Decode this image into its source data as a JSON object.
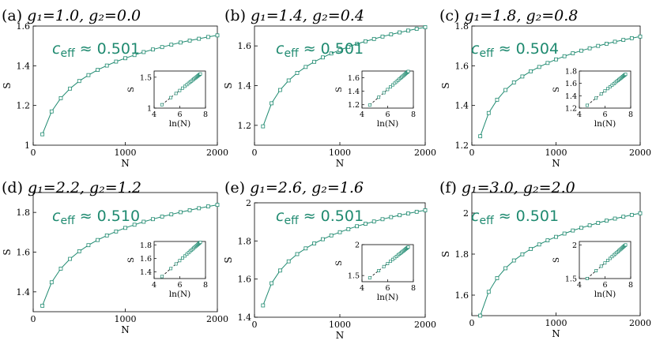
{
  "colors": {
    "series": "#1f8a70",
    "axis": "#000000"
  },
  "chart_data": [
    {
      "type": "line",
      "panel": "(a)",
      "title": "g₁=1.0, g₂=0.0",
      "annotation": "c_eff ≈ 0.501",
      "annotation_parts": {
        "symbol": "c",
        "subscript": "eff",
        "value": "≈ 0.501"
      },
      "xlabel": "N",
      "ylabel": "S",
      "xlim": [
        0,
        2000
      ],
      "ylim": [
        1.0,
        1.6
      ],
      "xticks": [
        0,
        1000,
        2000
      ],
      "xtick_labels": [
        "0",
        "1000",
        "2000"
      ],
      "yticks": [
        1.0,
        1.2,
        1.4,
        1.6
      ],
      "ytick_labels": [
        "1",
        "1.2",
        "1.4",
        "1.6"
      ],
      "x": [
        100,
        200,
        300,
        400,
        500,
        600,
        700,
        800,
        900,
        1000,
        1100,
        1200,
        1300,
        1400,
        1500,
        1600,
        1700,
        1800,
        1900,
        2000
      ],
      "y": [
        1.055,
        1.17,
        1.237,
        1.285,
        1.323,
        1.353,
        1.379,
        1.401,
        1.421,
        1.438,
        1.454,
        1.469,
        1.482,
        1.494,
        1.506,
        1.517,
        1.527,
        1.536,
        1.545,
        1.553
      ],
      "inset": {
        "xlabel": "ln(N)",
        "ylabel": "S",
        "xlim": [
          4,
          8
        ],
        "ylim": [
          1.0,
          1.6
        ],
        "xticks": [
          4,
          6,
          8
        ],
        "xtick_labels": [
          "4",
          "6",
          "8"
        ],
        "yticks": [
          1.0,
          1.5
        ],
        "ytick_labels": [
          "1",
          "1.5"
        ]
      }
    },
    {
      "type": "line",
      "panel": "(b)",
      "title": "g₁=1.4, g₂=0.4",
      "annotation": "c_eff ≈ 0.501",
      "annotation_parts": {
        "symbol": "c",
        "subscript": "eff",
        "value": "≈ 0.501"
      },
      "xlabel": "N",
      "ylabel": "S",
      "xlim": [
        0,
        2000
      ],
      "ylim": [
        1.1,
        1.7
      ],
      "xticks": [
        0,
        1000,
        2000
      ],
      "xtick_labels": [
        "0",
        "1000",
        "2000"
      ],
      "yticks": [
        1.2,
        1.4,
        1.6
      ],
      "ytick_labels": [
        "1.2",
        "1.4",
        "1.6"
      ],
      "x": [
        100,
        200,
        300,
        400,
        500,
        600,
        700,
        800,
        900,
        1000,
        1100,
        1200,
        1300,
        1400,
        1500,
        1600,
        1700,
        1800,
        1900,
        2000
      ],
      "y": [
        1.195,
        1.311,
        1.378,
        1.426,
        1.464,
        1.494,
        1.52,
        1.542,
        1.562,
        1.579,
        1.595,
        1.61,
        1.623,
        1.635,
        1.647,
        1.658,
        1.668,
        1.677,
        1.686,
        1.694
      ],
      "inset": {
        "xlabel": "ln(N)",
        "ylabel": "S",
        "xlim": [
          4,
          8
        ],
        "ylim": [
          1.15,
          1.7
        ],
        "xticks": [
          4,
          6,
          8
        ],
        "xtick_labels": [
          "4",
          "6",
          "8"
        ],
        "yticks": [
          1.2,
          1.4,
          1.6
        ],
        "ytick_labels": [
          "1.2",
          "1.4",
          "1.6"
        ]
      }
    },
    {
      "type": "line",
      "panel": "(c)",
      "title": "g₁=1.8, g₂=0.8",
      "annotation": "c_eff ≈ 0.504",
      "annotation_parts": {
        "symbol": "c",
        "subscript": "eff",
        "value": "≈ 0.504"
      },
      "xlabel": "N",
      "ylabel": "S",
      "xlim": [
        0,
        2000
      ],
      "ylim": [
        1.2,
        1.8
      ],
      "xticks": [
        0,
        1000,
        2000
      ],
      "xtick_labels": [
        "0",
        "1000",
        "2000"
      ],
      "yticks": [
        1.2,
        1.4,
        1.6,
        1.8
      ],
      "ytick_labels": [
        "1.2",
        "1.4",
        "1.6",
        "1.8"
      ],
      "x": [
        100,
        200,
        300,
        400,
        500,
        600,
        700,
        800,
        900,
        1000,
        1100,
        1200,
        1300,
        1400,
        1500,
        1600,
        1700,
        1800,
        1900,
        2000
      ],
      "y": [
        1.245,
        1.362,
        1.429,
        1.478,
        1.516,
        1.546,
        1.572,
        1.594,
        1.614,
        1.632,
        1.648,
        1.663,
        1.676,
        1.688,
        1.7,
        1.711,
        1.721,
        1.73,
        1.739,
        1.747
      ],
      "inset": {
        "xlabel": "ln(N)",
        "ylabel": "S",
        "xlim": [
          4,
          8
        ],
        "ylim": [
          1.2,
          1.8
        ],
        "xticks": [
          4,
          6,
          8
        ],
        "xtick_labels": [
          "4",
          "6",
          "8"
        ],
        "yticks": [
          1.2,
          1.4,
          1.6,
          1.8
        ],
        "ytick_labels": [
          "1.2",
          "1.4",
          "1.6",
          "1.8"
        ]
      }
    },
    {
      "type": "line",
      "panel": "(d)",
      "title": "g₁=2.2, g₂=1.2",
      "annotation": "c_eff ≈ 0.510",
      "annotation_parts": {
        "symbol": "c",
        "subscript": "eff",
        "value": "≈ 0.510"
      },
      "xlabel": "N",
      "ylabel": "S",
      "xlim": [
        0,
        2000
      ],
      "ylim": [
        1.3,
        1.9
      ],
      "xticks": [
        0,
        1000,
        2000
      ],
      "xtick_labels": [
        "0",
        "1000",
        "2000"
      ],
      "yticks": [
        1.4,
        1.6,
        1.8
      ],
      "ytick_labels": [
        "1.4",
        "1.6",
        "1.8"
      ],
      "x": [
        100,
        200,
        300,
        400,
        500,
        600,
        700,
        800,
        900,
        1000,
        1100,
        1200,
        1300,
        1400,
        1500,
        1600,
        1700,
        1800,
        1900,
        2000
      ],
      "y": [
        1.33,
        1.448,
        1.517,
        1.566,
        1.604,
        1.635,
        1.661,
        1.684,
        1.704,
        1.722,
        1.738,
        1.753,
        1.766,
        1.779,
        1.79,
        1.801,
        1.811,
        1.821,
        1.83,
        1.838
      ],
      "inset": {
        "xlabel": "ln(N)",
        "ylabel": "S",
        "xlim": [
          4,
          8
        ],
        "ylim": [
          1.3,
          1.85
        ],
        "xticks": [
          4,
          6,
          8
        ],
        "xtick_labels": [
          "4",
          "6",
          "8"
        ],
        "yticks": [
          1.4,
          1.6,
          1.8
        ],
        "ytick_labels": [
          "1.4",
          "1.6",
          "1.8"
        ]
      }
    },
    {
      "type": "line",
      "panel": "(e)",
      "title": "g₁=2.6, g₂=1.6",
      "annotation": "c_eff ≈ 0.501",
      "annotation_parts": {
        "symbol": "c",
        "subscript": "eff",
        "value": "≈ 0.501"
      },
      "xlabel": "N",
      "ylabel": "S",
      "xlim": [
        0,
        2000
      ],
      "ylim": [
        1.4,
        2.0
      ],
      "xticks": [
        0,
        1000,
        2000
      ],
      "xtick_labels": [
        "0",
        "1000",
        "2000"
      ],
      "yticks": [
        1.4,
        1.6,
        1.8,
        2.0
      ],
      "ytick_labels": [
        "1.4",
        "1.6",
        "1.8",
        "2"
      ],
      "x": [
        100,
        200,
        300,
        400,
        500,
        600,
        700,
        800,
        900,
        1000,
        1100,
        1200,
        1300,
        1400,
        1500,
        1600,
        1700,
        1800,
        1900,
        2000
      ],
      "y": [
        1.462,
        1.578,
        1.645,
        1.693,
        1.731,
        1.761,
        1.787,
        1.809,
        1.829,
        1.846,
        1.862,
        1.877,
        1.89,
        1.902,
        1.914,
        1.925,
        1.935,
        1.944,
        1.953,
        1.961
      ],
      "inset": {
        "xlabel": "ln(N)",
        "ylabel": "S",
        "xlim": [
          4,
          8
        ],
        "ylim": [
          1.4,
          2.0
        ],
        "xticks": [
          4,
          6,
          8
        ],
        "xtick_labels": [
          "4",
          "6",
          "8"
        ],
        "yticks": [
          1.5,
          2.0
        ],
        "ytick_labels": [
          "1.5",
          "2"
        ]
      }
    },
    {
      "type": "line",
      "panel": "(f)",
      "title": "g₁=3.0, g₂=2.0",
      "annotation": "c_eff ≈ 0.501",
      "annotation_parts": {
        "symbol": "c",
        "subscript": "eff",
        "value": "≈ 0.501"
      },
      "xlabel": "N",
      "ylabel": "S",
      "xlim": [
        0,
        2000
      ],
      "ylim": [
        1.5,
        2.1
      ],
      "xticks": [
        0,
        1000,
        2000
      ],
      "xtick_labels": [
        "0",
        "1000",
        "2000"
      ],
      "yticks": [
        1.6,
        1.8,
        2.0
      ],
      "ytick_labels": [
        "1.6",
        "1.8",
        "2"
      ],
      "x": [
        100,
        200,
        300,
        400,
        500,
        600,
        700,
        800,
        900,
        1000,
        1100,
        1200,
        1300,
        1400,
        1500,
        1600,
        1700,
        1800,
        1900,
        2000
      ],
      "y": [
        1.5,
        1.616,
        1.683,
        1.731,
        1.769,
        1.799,
        1.825,
        1.847,
        1.867,
        1.884,
        1.9,
        1.915,
        1.928,
        1.94,
        1.952,
        1.963,
        1.973,
        1.982,
        1.991,
        1.999
      ],
      "inset": {
        "xlabel": "ln(N)",
        "ylabel": "S",
        "xlim": [
          4,
          8
        ],
        "ylim": [
          1.5,
          2.05
        ],
        "xticks": [
          4,
          6,
          8
        ],
        "xtick_labels": [
          "4",
          "6",
          "8"
        ],
        "yticks": [
          1.5,
          2.0
        ],
        "ytick_labels": [
          "1.5",
          "2"
        ]
      }
    }
  ]
}
